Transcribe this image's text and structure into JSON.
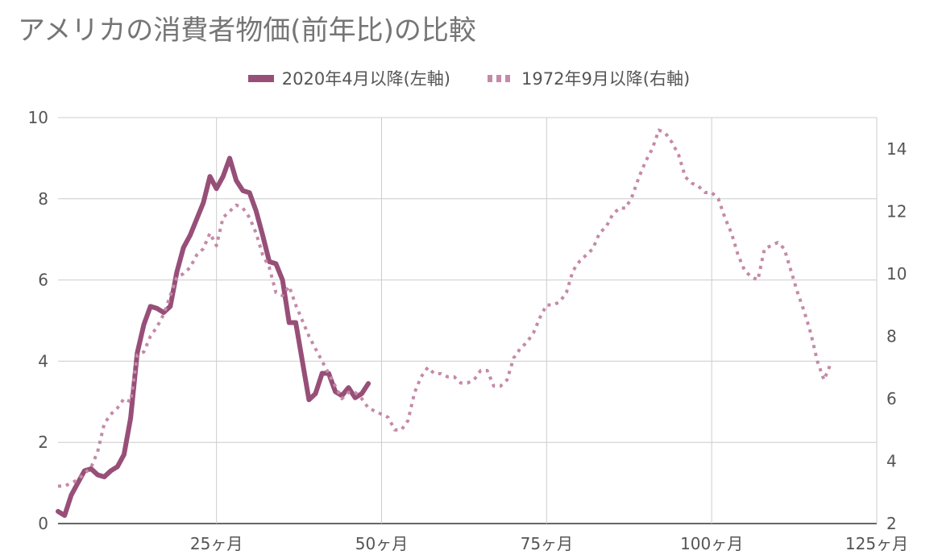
{
  "chart_data": {
    "type": "line",
    "title": "アメリカの消費者物価(前年比)の比較",
    "legend_position": "top-center",
    "grid": true,
    "x_axis": {
      "range": [
        1,
        125
      ],
      "ticks": [
        25,
        50,
        75,
        100,
        125
      ],
      "tick_labels": [
        "25ヶ月",
        "50ヶ月",
        "75ヶ月",
        "100ヶ月",
        "125ヶ月"
      ]
    },
    "y_axis_left": {
      "range": [
        0,
        10
      ],
      "ticks": [
        0,
        2,
        4,
        6,
        8,
        10
      ],
      "tick_labels": [
        "0",
        "2",
        "4",
        "6",
        "8",
        "10"
      ]
    },
    "y_axis_right": {
      "range": [
        2,
        15
      ],
      "ticks": [
        2,
        4,
        6,
        8,
        10,
        12,
        14
      ],
      "tick_labels": [
        "2",
        "4",
        "6",
        "8",
        "10",
        "12",
        "14"
      ]
    },
    "series": [
      {
        "name": "2020年4月以降(左軸)",
        "axis": "left",
        "style": "solid",
        "color": "#974f78",
        "x": [
          1,
          2,
          3,
          4,
          5,
          6,
          7,
          8,
          9,
          10,
          11,
          12,
          13,
          14,
          15,
          16,
          17,
          18,
          19,
          20,
          21,
          22,
          23,
          24,
          25,
          26,
          27,
          28,
          29,
          30,
          31,
          32,
          33,
          34,
          35,
          36,
          37,
          38,
          39,
          40,
          41,
          42,
          43,
          44,
          45,
          46,
          47,
          48
        ],
        "values": [
          0.3,
          0.2,
          0.7,
          1.0,
          1.3,
          1.35,
          1.2,
          1.15,
          1.3,
          1.4,
          1.7,
          2.6,
          4.2,
          4.9,
          5.35,
          5.3,
          5.2,
          5.35,
          6.2,
          6.8,
          7.1,
          7.5,
          7.9,
          8.55,
          8.25,
          8.55,
          9.0,
          8.45,
          8.2,
          8.15,
          7.7,
          7.1,
          6.45,
          6.4,
          6.0,
          4.95,
          4.95,
          4.0,
          3.05,
          3.2,
          3.7,
          3.7,
          3.25,
          3.15,
          3.35,
          3.1,
          3.2,
          3.45
        ]
      },
      {
        "name": "1972年9月以降(右軸)",
        "axis": "right",
        "style": "dotted",
        "color": "#c48aa8",
        "x": [
          1,
          2,
          3,
          4,
          5,
          6,
          7,
          8,
          9,
          10,
          11,
          12,
          13,
          14,
          15,
          16,
          17,
          18,
          19,
          20,
          21,
          22,
          23,
          24,
          25,
          26,
          27,
          28,
          29,
          30,
          31,
          32,
          33,
          34,
          35,
          36,
          37,
          38,
          39,
          40,
          41,
          42,
          43,
          44,
          45,
          46,
          47,
          48,
          49,
          50,
          51,
          52,
          53,
          54,
          55,
          56,
          57,
          58,
          59,
          60,
          61,
          62,
          63,
          64,
          65,
          66,
          67,
          68,
          69,
          70,
          71,
          72,
          73,
          74,
          75,
          76,
          77,
          78,
          79,
          80,
          81,
          82,
          83,
          84,
          85,
          86,
          87,
          88,
          89,
          90,
          91,
          92,
          93,
          94,
          95,
          96,
          97,
          98,
          99,
          100,
          101,
          102,
          103,
          104,
          105,
          106,
          107,
          108,
          109,
          110,
          111,
          112,
          113,
          114,
          115,
          116,
          117,
          118
        ],
        "values": [
          3.2,
          3.2,
          3.3,
          3.4,
          3.6,
          3.8,
          4.3,
          5.2,
          5.5,
          5.7,
          6.0,
          5.9,
          7.4,
          7.5,
          8.0,
          8.3,
          8.7,
          9.3,
          9.9,
          10.0,
          10.2,
          10.6,
          10.8,
          11.3,
          10.9,
          11.8,
          12.0,
          12.2,
          12.1,
          11.8,
          11.3,
          10.6,
          10.2,
          9.4,
          9.3,
          9.6,
          9.0,
          8.5,
          8.0,
          7.6,
          7.2,
          6.8,
          6.4,
          6.0,
          6.2,
          6.2,
          6.0,
          5.7,
          5.6,
          5.5,
          5.4,
          5.0,
          5.0,
          5.3,
          6.2,
          6.7,
          7.0,
          6.8,
          6.8,
          6.7,
          6.7,
          6.5,
          6.5,
          6.6,
          6.9,
          6.9,
          6.4,
          6.4,
          6.6,
          7.3,
          7.6,
          7.8,
          8.1,
          8.6,
          9.0,
          9.0,
          9.1,
          9.4,
          10.1,
          10.4,
          10.6,
          10.8,
          11.3,
          11.5,
          11.9,
          12.1,
          12.1,
          12.5,
          13.1,
          13.6,
          14.0,
          14.6,
          14.5,
          14.2,
          13.8,
          13.1,
          12.9,
          12.8,
          12.6,
          12.6,
          12.4,
          11.8,
          11.3,
          10.6,
          10.1,
          9.9,
          9.8,
          10.8,
          10.9,
          11.0,
          10.8,
          10.1,
          9.4,
          8.8,
          8.1,
          7.2,
          6.6,
          7.1
        ]
      }
    ]
  }
}
